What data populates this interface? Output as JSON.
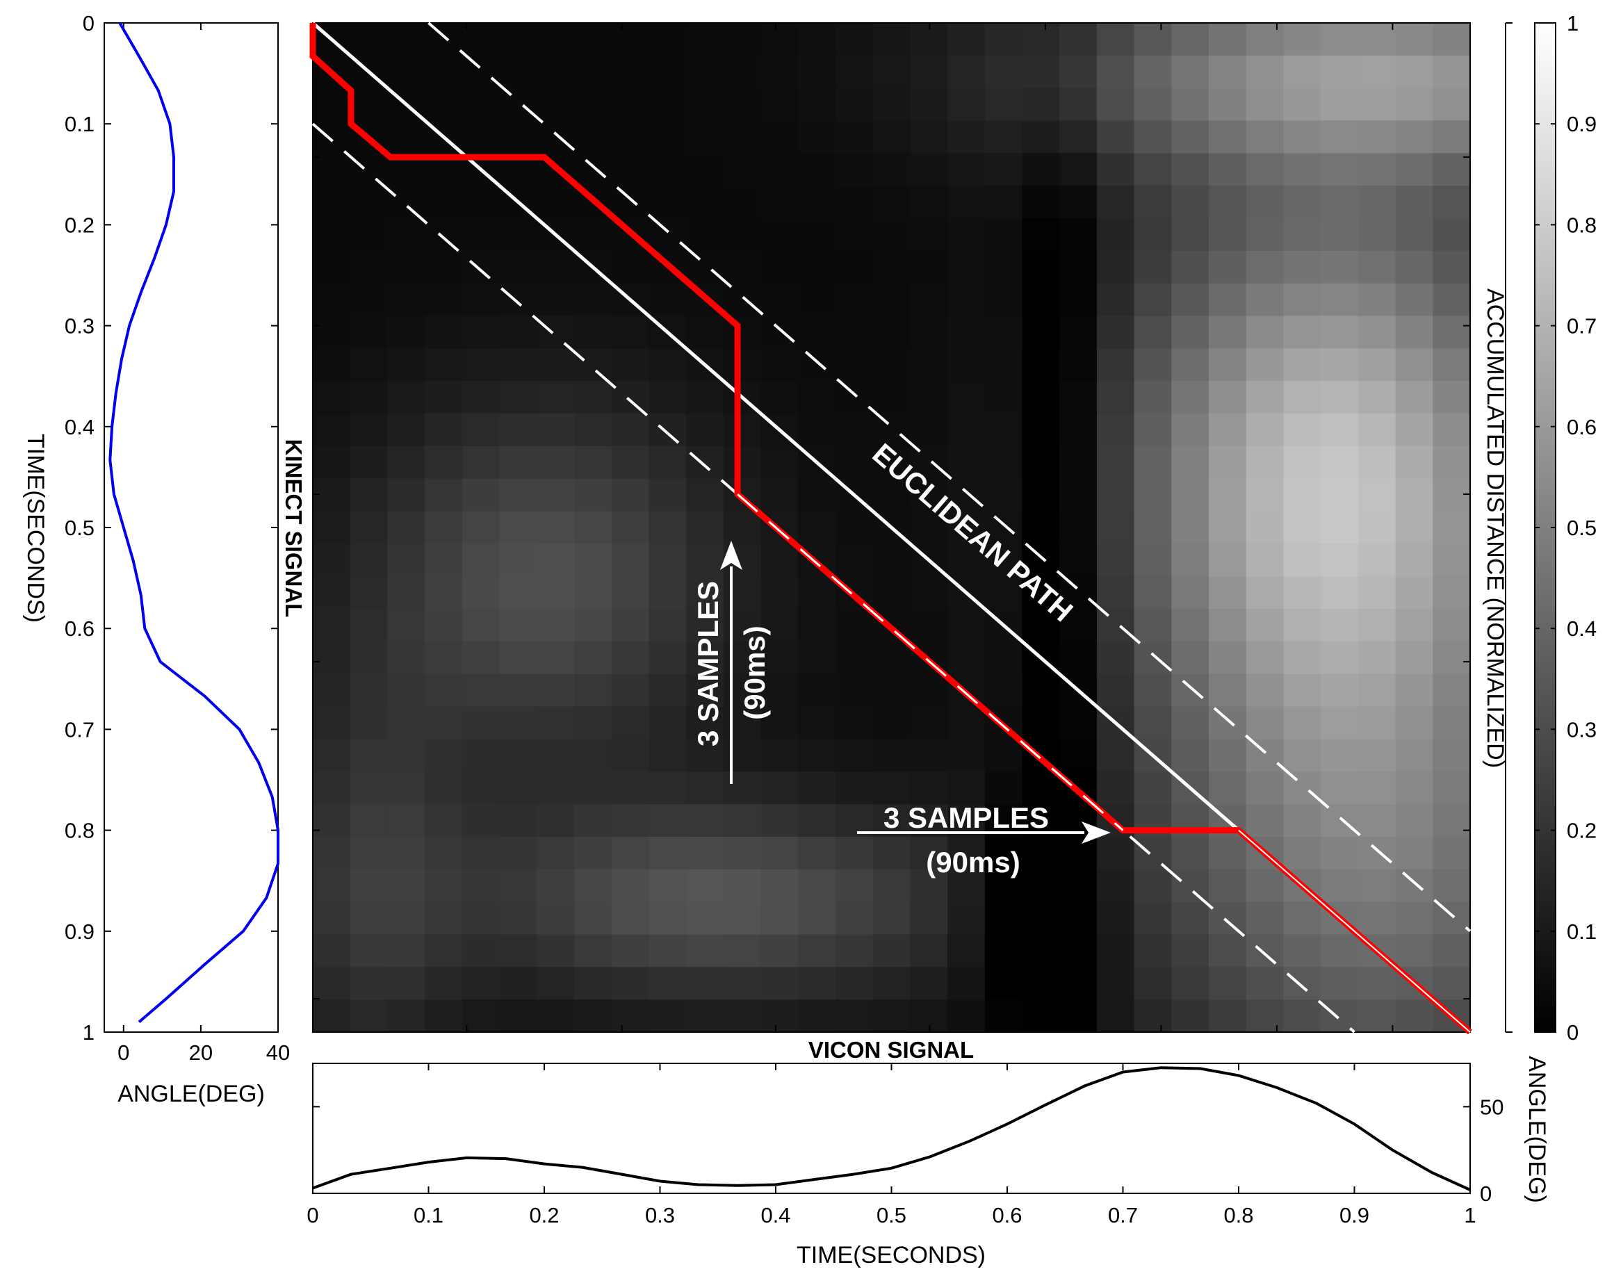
{
  "figure": {
    "kinect_signal_label": "KINECT SIGNAL",
    "vicon_signal_label": "VICON SIGNAL",
    "colorbar_label": "ACCUMULATED DISTANCE (NORMALIZED)",
    "colors": {
      "kinect_line": "#0000ee",
      "vicon_line": "#000000",
      "dtw_path": "#ff0000",
      "euclidean_path": "#ffffff"
    }
  },
  "chart_data": [
    {
      "id": "kinect",
      "type": "line",
      "orientation": "vertical",
      "xlabel": "ANGLE(DEG)",
      "ylabel": "TIME(SECONDS)",
      "xlim": [
        -5,
        40
      ],
      "ylim": [
        0,
        1
      ],
      "x_ticks": [
        0,
        20,
        40
      ],
      "y_ticks": [
        0,
        0.1,
        0.2,
        0.3,
        0.4,
        0.5,
        0.6,
        0.7,
        0.8,
        0.9,
        1
      ],
      "time": [
        0,
        0.033,
        0.067,
        0.1,
        0.133,
        0.167,
        0.2,
        0.233,
        0.267,
        0.3,
        0.333,
        0.367,
        0.4,
        0.433,
        0.467,
        0.5,
        0.533,
        0.567,
        0.6,
        0.633,
        0.667,
        0.7,
        0.733,
        0.767,
        0.8,
        0.833,
        0.867,
        0.9,
        0.933,
        0.967,
        0.99
      ],
      "angle": [
        -1,
        4,
        9,
        12,
        13,
        13,
        11,
        8,
        4.5,
        1.5,
        -0.5,
        -2,
        -3,
        -3.5,
        -2.5,
        0,
        2.5,
        4.5,
        5.5,
        9.5,
        21,
        30,
        35,
        38.5,
        40,
        40,
        37,
        31,
        21,
        11,
        4
      ]
    },
    {
      "id": "vicon",
      "type": "line",
      "xlabel": "TIME(SECONDS)",
      "ylabel": "ANGLE(DEG)",
      "xlim": [
        0,
        1
      ],
      "ylim": [
        0,
        75
      ],
      "x_ticks": [
        0,
        0.1,
        0.2,
        0.3,
        0.4,
        0.5,
        0.6,
        0.7,
        0.8,
        0.9,
        1
      ],
      "y_ticks": [
        0,
        50
      ],
      "time": [
        0,
        0.033,
        0.067,
        0.1,
        0.133,
        0.167,
        0.2,
        0.233,
        0.267,
        0.3,
        0.333,
        0.367,
        0.4,
        0.433,
        0.467,
        0.5,
        0.533,
        0.567,
        0.6,
        0.633,
        0.667,
        0.7,
        0.733,
        0.767,
        0.8,
        0.833,
        0.867,
        0.9,
        0.933,
        0.967,
        1
      ],
      "angle": [
        3,
        11,
        14.5,
        18,
        20.5,
        20,
        17,
        15,
        11,
        7,
        5,
        4.5,
        5,
        8,
        11,
        14.5,
        21,
        30,
        40,
        51,
        62,
        70,
        72.5,
        72,
        68,
        61,
        52,
        40,
        25,
        12,
        2
      ]
    },
    {
      "id": "distance",
      "type": "heatmap",
      "title": "",
      "xlabel": "",
      "ylabel": "",
      "xlim": [
        0,
        1
      ],
      "ylim": [
        0,
        1
      ],
      "x_ticks": [
        0,
        0.133,
        0.267,
        0.4,
        0.533,
        0.633,
        0.733,
        0.833,
        0.933
      ],
      "y_ticks": [
        0,
        0.133,
        0.3,
        0.467,
        0.633,
        0.8,
        0.967
      ],
      "dtw_path": {
        "x": [
          0,
          0,
          0.033,
          0.033,
          0.067,
          0.2,
          0.367,
          0.367,
          0.7,
          0.8,
          1
        ],
        "y": [
          0,
          0.033,
          0.067,
          0.1,
          0.133,
          0.133,
          0.3,
          0.467,
          0.8,
          0.8,
          1
        ]
      },
      "euclidean_path": {
        "x": [
          0,
          1
        ],
        "y": [
          0,
          1
        ],
        "label": "EUCLIDEAN PATH"
      },
      "window": {
        "offset": 0.1,
        "upper_label": "",
        "lower_label": ""
      },
      "annotations": [
        {
          "text": "3 SAMPLES",
          "subtext": "(90ms)",
          "direction": "up"
        },
        {
          "text": "3 SAMPLES",
          "subtext": "(90ms)",
          "direction": "right"
        }
      ]
    },
    {
      "id": "colorbar",
      "type": "heatmap",
      "label": "ACCUMULATED DISTANCE (NORMALIZED)",
      "ylim": [
        0,
        1
      ],
      "ticks": [
        0,
        0.1,
        0.2,
        0.3,
        0.4,
        0.5,
        0.6,
        0.7,
        0.8,
        0.9,
        1
      ]
    }
  ]
}
